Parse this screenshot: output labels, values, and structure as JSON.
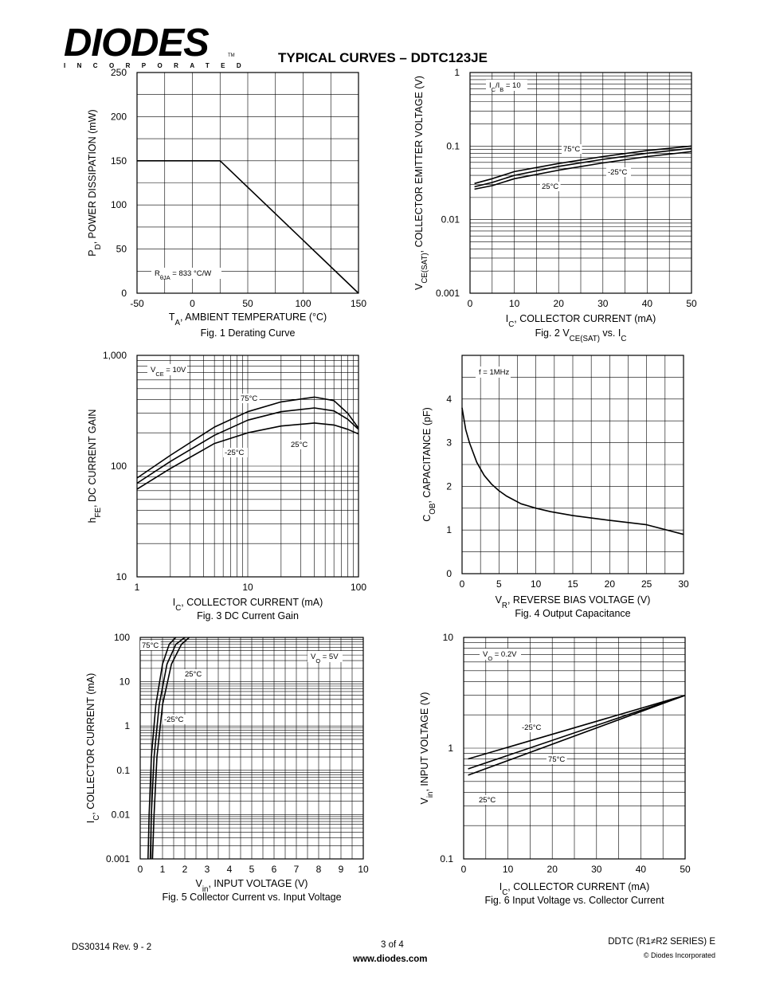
{
  "header": {
    "logo_main": "DIODES",
    "logo_sub": "INCORPORATED",
    "logo_tm": "TM",
    "title": "TYPICAL CURVES – DDTC123JE"
  },
  "footer": {
    "doc_id": "DS30314 Rev. 9 - 2",
    "page": "3 of 4",
    "url": "www.diodes.com",
    "series": "DDTC (R1≠R2 SERIES) E",
    "copyright": "© Diodes Incorporated"
  },
  "chart_data": [
    {
      "id": "fig1",
      "type": "line",
      "caption": "Fig. 1  Derating Curve",
      "xlabel": "T_A, AMBIENT TEMPERATURE (°C)",
      "ylabel": "P_D, POWER DISSIPATION (mW)",
      "xlim": [
        -50,
        150
      ],
      "ylim": [
        0,
        250
      ],
      "x_scale": "linear",
      "y_scale": "linear",
      "x_ticks": [
        -50,
        0,
        50,
        100,
        150
      ],
      "x_tick_labels": [
        "-50",
        "0",
        "50",
        "100",
        "150"
      ],
      "y_ticks": [
        0,
        50,
        100,
        150,
        200,
        250
      ],
      "y_tick_labels": [
        "0",
        "50",
        "100",
        "150",
        "200",
        "250"
      ],
      "grid": true,
      "series": [
        {
          "x": [
            -50,
            25,
            150
          ],
          "y": [
            150,
            150,
            0
          ]
        }
      ],
      "annotations": [
        {
          "text": "R_θJA = 833 °C/W"
        }
      ]
    },
    {
      "id": "fig2",
      "type": "line",
      "caption": "Fig. 2  V_CE(SAT) vs. I_C",
      "xlabel": "I_C, COLLECTOR CURRENT (mA)",
      "ylabel": "V_CE(SAT), COLLECTOR EMITTER VOLTAGE (V)",
      "xlim": [
        0,
        50
      ],
      "ylim": [
        0.001,
        1
      ],
      "x_scale": "linear",
      "y_scale": "log",
      "x_ticks": [
        0,
        10,
        20,
        30,
        40,
        50
      ],
      "x_tick_labels": [
        "0",
        "10",
        "20",
        "30",
        "40",
        "50"
      ],
      "y_ticks": [
        0.001,
        0.01,
        0.1,
        1
      ],
      "y_tick_labels": [
        "0.001",
        "0.01",
        "0.1",
        "1"
      ],
      "grid": true,
      "series": [
        {
          "name": "75°C",
          "x": [
            1,
            5,
            10,
            20,
            30,
            40,
            50
          ],
          "y": [
            0.031,
            0.036,
            0.045,
            0.058,
            0.072,
            0.087,
            0.1
          ]
        },
        {
          "name": "25°C",
          "x": [
            1,
            5,
            10,
            20,
            30,
            40,
            50
          ],
          "y": [
            0.028,
            0.032,
            0.04,
            0.053,
            0.066,
            0.08,
            0.093
          ]
        },
        {
          "name": "-25°C",
          "x": [
            1,
            5,
            10,
            20,
            30,
            40,
            50
          ],
          "y": [
            0.026,
            0.029,
            0.036,
            0.047,
            0.059,
            0.072,
            0.084
          ]
        }
      ],
      "annotations": [
        {
          "text": "I_C/I_B = 10"
        }
      ]
    },
    {
      "id": "fig3",
      "type": "line",
      "caption": "Fig. 3  DC Current Gain",
      "xlabel": "I_C, COLLECTOR CURRENT (mA)",
      "ylabel": "h_FE, DC CURRENT GAIN",
      "xlim": [
        1,
        100
      ],
      "ylim": [
        10,
        1000
      ],
      "x_scale": "log",
      "y_scale": "log",
      "x_ticks": [
        1,
        10,
        100
      ],
      "x_tick_labels": [
        "1",
        "10",
        "100"
      ],
      "y_ticks": [
        10,
        100,
        1000
      ],
      "y_tick_labels": [
        "10",
        "100",
        "1,000"
      ],
      "grid": true,
      "series": [
        {
          "name": "75°C",
          "x": [
            1,
            2,
            5,
            10,
            20,
            40,
            60,
            80,
            100
          ],
          "y": [
            78,
            125,
            225,
            310,
            380,
            420,
            390,
            300,
            220
          ]
        },
        {
          "name": "25°C",
          "x": [
            1,
            2,
            5,
            10,
            20,
            40,
            60,
            80,
            100
          ],
          "y": [
            70,
            110,
            190,
            260,
            310,
            335,
            315,
            265,
            215
          ]
        },
        {
          "name": "-25°C",
          "x": [
            1,
            2,
            5,
            10,
            20,
            40,
            60,
            80,
            100
          ],
          "y": [
            62,
            95,
            160,
            200,
            230,
            245,
            235,
            215,
            195
          ]
        }
      ],
      "annotations": [
        {
          "text": "V_CE = 10V"
        }
      ]
    },
    {
      "id": "fig4",
      "type": "line",
      "caption": "Fig. 4  Output Capacitance",
      "xlabel": "V_R, REVERSE BIAS VOLTAGE (V)",
      "ylabel": "C_OB, CAPACITANCE (pF)",
      "xlim": [
        0,
        30
      ],
      "ylim": [
        0,
        5
      ],
      "x_scale": "linear",
      "y_scale": "linear",
      "x_ticks": [
        0,
        5,
        10,
        15,
        20,
        25,
        30
      ],
      "x_tick_labels": [
        "0",
        "5",
        "10",
        "15",
        "20",
        "25",
        "30"
      ],
      "y_ticks": [
        0,
        1,
        2,
        3,
        4
      ],
      "y_tick_labels": [
        "0",
        "1",
        "2",
        "3",
        "4"
      ],
      "grid": true,
      "series": [
        {
          "x": [
            0,
            0.5,
            1,
            2,
            3,
            4,
            5,
            6,
            8,
            10,
            12,
            15,
            20,
            25,
            30
          ],
          "y": [
            3.8,
            3.3,
            3.0,
            2.55,
            2.25,
            2.05,
            1.9,
            1.78,
            1.6,
            1.5,
            1.42,
            1.33,
            1.22,
            1.12,
            0.9
          ]
        }
      ],
      "annotations": [
        {
          "text": "f = 1MHz"
        }
      ]
    },
    {
      "id": "fig5",
      "type": "line",
      "caption": "Fig. 5  Collector Current vs. Input Voltage",
      "xlabel": "V_in, INPUT VOLTAGE (V)",
      "ylabel": "I_C, COLLECTOR CURRENT (mA)",
      "xlim": [
        0,
        10
      ],
      "ylim": [
        0.001,
        100
      ],
      "x_scale": "linear",
      "y_scale": "log",
      "x_ticks": [
        0,
        1,
        2,
        3,
        4,
        5,
        6,
        7,
        8,
        9,
        10
      ],
      "x_tick_labels": [
        "0",
        "1",
        "2",
        "3",
        "4",
        "5",
        "6",
        "7",
        "8",
        "9",
        "10"
      ],
      "y_ticks": [
        0.001,
        0.01,
        0.1,
        1,
        10,
        100
      ],
      "y_tick_labels": [
        "0.001",
        "0.01",
        "0.1",
        "1",
        "10",
        "100"
      ],
      "grid": true,
      "series": [
        {
          "name": "75°C",
          "x": [
            0.35,
            0.4,
            0.5,
            0.7,
            1.0,
            1.3,
            1.6
          ],
          "y": [
            0.001,
            0.01,
            0.2,
            3,
            25,
            70,
            100
          ]
        },
        {
          "name": "25°C",
          "x": [
            0.45,
            0.5,
            0.62,
            0.85,
            1.2,
            1.6,
            2.0
          ],
          "y": [
            0.001,
            0.01,
            0.2,
            3,
            25,
            70,
            100
          ]
        },
        {
          "name": "-25°C",
          "x": [
            0.55,
            0.62,
            0.75,
            1.0,
            1.4,
            1.85,
            2.2
          ],
          "y": [
            0.001,
            0.01,
            0.2,
            3,
            25,
            70,
            100
          ]
        }
      ],
      "annotations": [
        {
          "text": "V_O = 5V"
        }
      ]
    },
    {
      "id": "fig6",
      "type": "line",
      "caption": "Fig. 6  Input Voltage vs. Collector Current",
      "xlabel": "I_C, COLLECTOR CURRENT (mA)",
      "ylabel": "V_in, INPUT VOLTAGE (V)",
      "xlim": [
        0,
        50
      ],
      "ylim": [
        0.1,
        10
      ],
      "x_scale": "linear",
      "y_scale": "log",
      "x_ticks": [
        0,
        10,
        20,
        30,
        40,
        50
      ],
      "x_tick_labels": [
        "0",
        "10",
        "20",
        "30",
        "40",
        "50"
      ],
      "y_ticks": [
        0.1,
        1,
        10
      ],
      "y_tick_labels": [
        "0.1",
        "1",
        "10"
      ],
      "grid": true,
      "series": [
        {
          "name": "-25°C",
          "x": [
            1,
            50
          ],
          "y": [
            0.8,
            3.0
          ]
        },
        {
          "name": "75°C",
          "x": [
            1,
            50
          ],
          "y": [
            0.65,
            3.0
          ]
        },
        {
          "name": "25°C",
          "x": [
            1,
            50
          ],
          "y": [
            0.57,
            3.0
          ]
        }
      ],
      "annotations": [
        {
          "text": "V_O = 0.2V"
        }
      ]
    }
  ]
}
